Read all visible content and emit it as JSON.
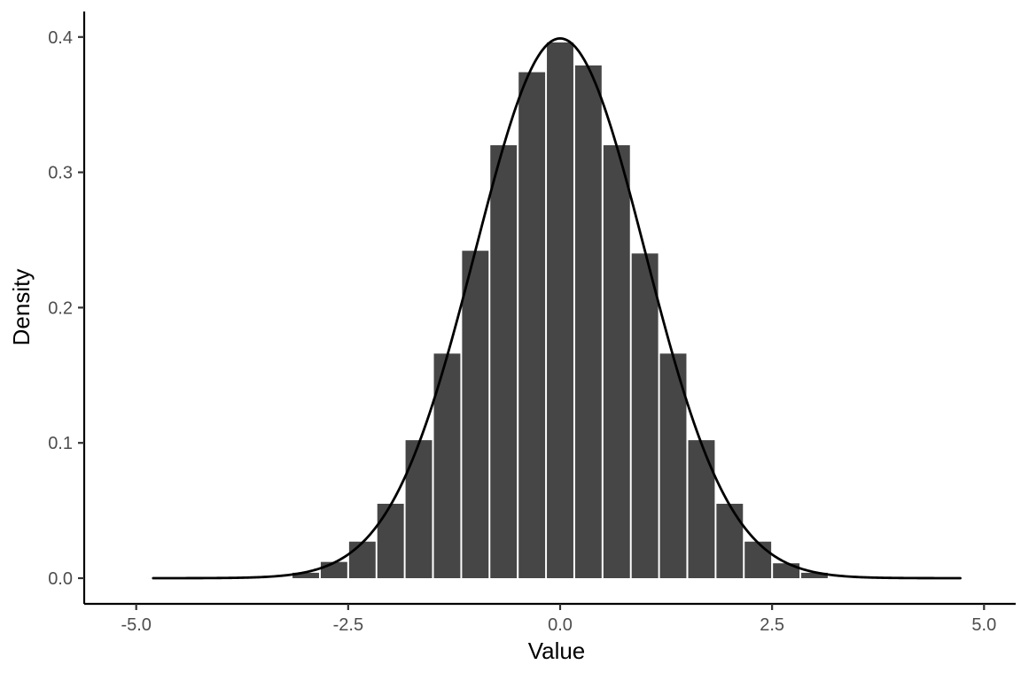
{
  "chart_data": {
    "type": "histogram",
    "subtype": "histogram-with-density-curve",
    "title": "",
    "xlabel": "Value",
    "ylabel": "Density",
    "grid": "off",
    "legend": "none",
    "x_tick_values": [
      -5.0,
      -2.5,
      0.0,
      2.5,
      5.0
    ],
    "x_tick_labels": [
      "-5.0",
      "-2.5",
      "0.0",
      "2.5",
      "5.0"
    ],
    "y_tick_values": [
      0.0,
      0.1,
      0.2,
      0.3,
      0.4
    ],
    "y_tick_labels": [
      "0.0",
      "0.1",
      "0.2",
      "0.3",
      "0.4"
    ],
    "x_range_shown": [
      -5.6,
      5.4
    ],
    "y_range_shown": [
      -0.019,
      0.419
    ],
    "bin_width": 0.3333,
    "bars": {
      "centers": [
        -3.0,
        -2.667,
        -2.333,
        -2.0,
        -1.667,
        -1.333,
        -1.0,
        -0.667,
        -0.333,
        0.0,
        0.333,
        0.667,
        1.0,
        1.333,
        1.667,
        2.0,
        2.333,
        2.667,
        3.0
      ],
      "densities": [
        0.004,
        0.012,
        0.027,
        0.055,
        0.102,
        0.166,
        0.242,
        0.32,
        0.374,
        0.396,
        0.379,
        0.32,
        0.24,
        0.166,
        0.102,
        0.055,
        0.027,
        0.011,
        0.004
      ]
    },
    "curve": {
      "distribution": "normal",
      "mean": 0,
      "sd": 1,
      "x_from": -4.8,
      "x_to": 4.73,
      "peak_density": 0.3989
    },
    "colors": {
      "background": "#ffffff",
      "bar_fill": "#464646",
      "bar_gap": "#ffffff",
      "curve": "#000000",
      "axis_line": "#000000",
      "tick_mark": "#333333",
      "tick_label": "#4d4d4d",
      "axis_title": "#000000"
    }
  }
}
